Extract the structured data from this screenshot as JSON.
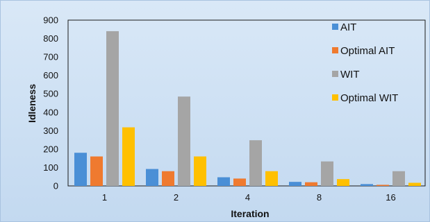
{
  "chart_data": {
    "type": "bar",
    "title": "",
    "xlabel": "Iteration",
    "ylabel": "Idleness",
    "categories": [
      "1",
      "2",
      "4",
      "8",
      "16"
    ],
    "ylim": [
      0,
      900
    ],
    "yticks": [
      0,
      100,
      200,
      300,
      400,
      500,
      600,
      700,
      800,
      900
    ],
    "grid": false,
    "legend_position": "right",
    "series": [
      {
        "name": "AIT",
        "color": "#4a8fd6",
        "values": [
          180,
          92,
          47,
          22,
          10
        ]
      },
      {
        "name": "Optimal AIT",
        "color": "#ef7a2f",
        "values": [
          160,
          80,
          40,
          20,
          6
        ]
      },
      {
        "name": "WIT",
        "color": "#a5a5a5",
        "values": [
          840,
          485,
          248,
          133,
          80
        ]
      },
      {
        "name": "Optimal WIT",
        "color": "#ffc000",
        "values": [
          318,
          160,
          80,
          37,
          17
        ]
      }
    ]
  }
}
